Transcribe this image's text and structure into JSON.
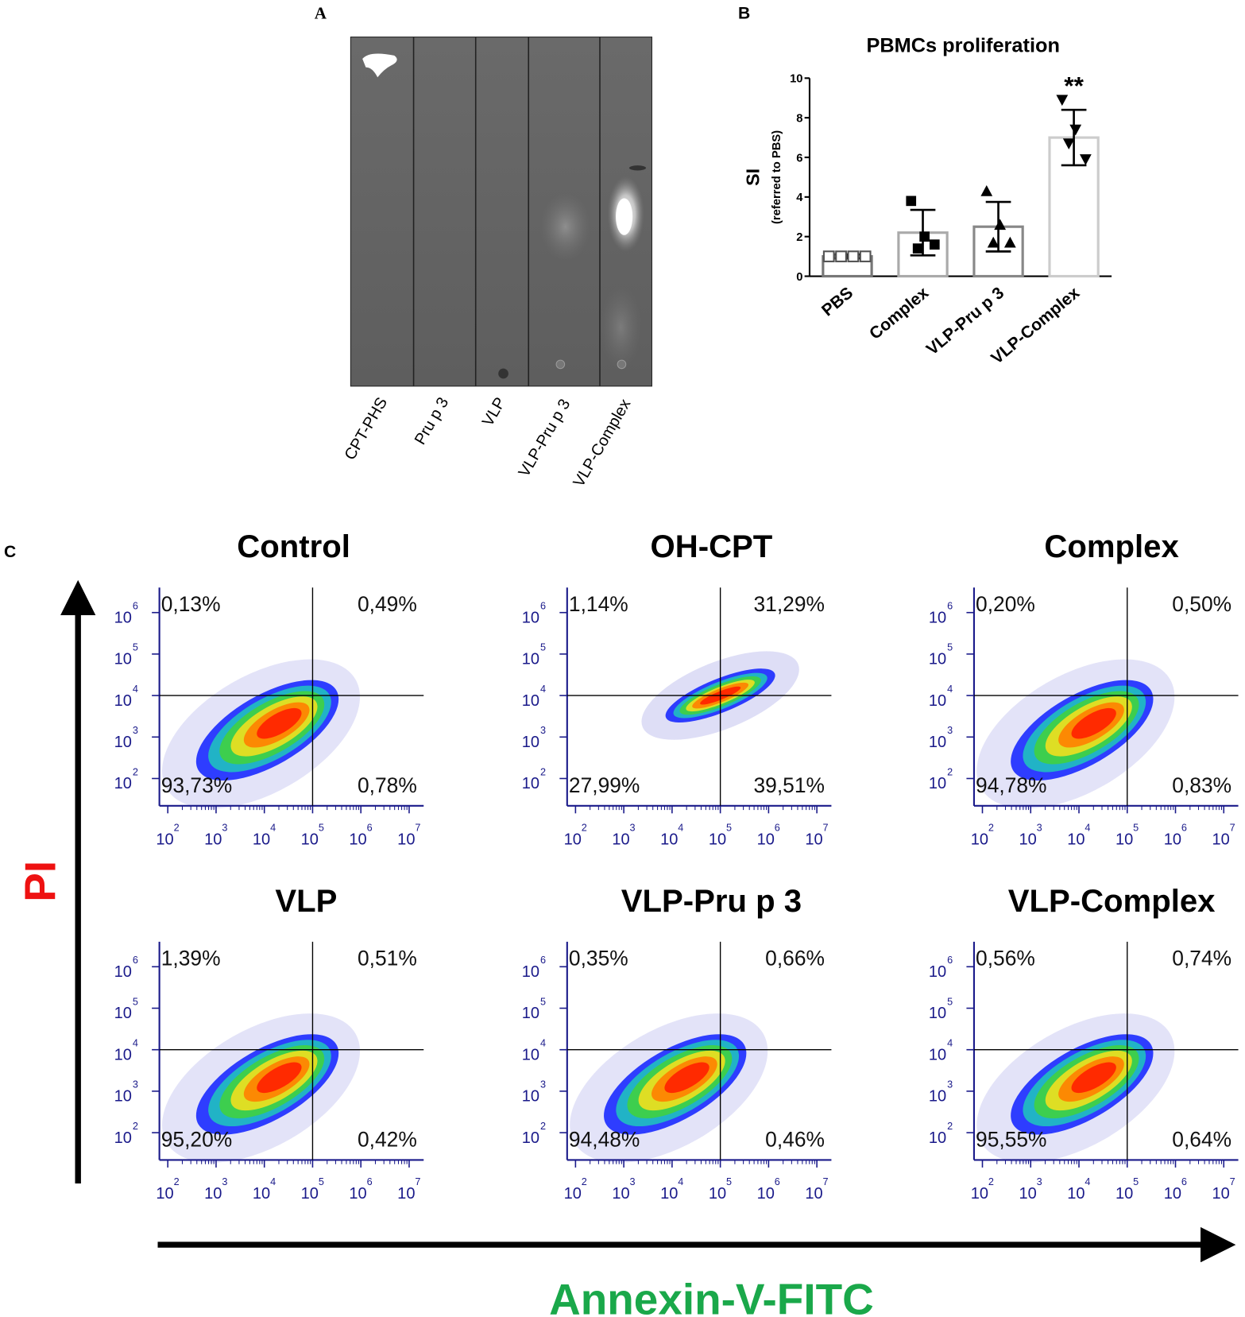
{
  "panel_a": {
    "letter": "A",
    "lanes": [
      "CPT-PHS",
      "Pru p 3",
      "VLP",
      "VLP-Pru p 3",
      "VLP-Complex"
    ]
  },
  "chart_data": [
    {
      "type": "bar",
      "letter": "B",
      "title": "PBMCs proliferation",
      "y_label": "SI",
      "y_sublabel": "(referred to PBS)",
      "categories": [
        "PBS",
        "Complex",
        "VLP-Pru p 3",
        "VLP-Complex"
      ],
      "values": [
        1,
        2.2,
        2.5,
        7.0
      ],
      "errors": [
        0.1,
        1.15,
        1.25,
        1.4
      ],
      "points": [
        [
          1,
          1,
          1,
          1
        ],
        [
          3.8,
          2.0,
          1.4,
          1.6
        ],
        [
          4.3,
          2.6,
          1.7,
          1.7
        ],
        [
          8.9,
          7.4,
          6.7,
          5.9
        ]
      ],
      "colors": [
        "#777777",
        "#aaaaaa",
        "#888888",
        "#cccccc"
      ],
      "markers": [
        "open-square",
        "square",
        "triangle",
        "triangle-down"
      ],
      "annotation": "**",
      "ylim": [
        0,
        10
      ],
      "yticks": [
        0,
        2,
        4,
        6,
        8,
        10
      ]
    },
    {
      "type": "flow",
      "title": "Control",
      "quadrants": [
        0.13,
        0.49,
        93.73,
        0.78
      ],
      "value_labels": [
        "0,13%",
        "0,49%",
        "93,73%",
        "0,78%"
      ],
      "log": true,
      "xlim": [
        67,
        20000000
      ],
      "ylim": [
        22,
        4000000
      ],
      "gate": [
        100000,
        10000
      ],
      "xticks": [
        {
          "value": 100,
          "label": "10",
          "sup": "2"
        },
        {
          "value": 1000,
          "label": "10",
          "sup": "3"
        },
        {
          "value": 10000,
          "label": "10",
          "sup": "4"
        },
        {
          "value": 100000,
          "label": "10",
          "sup": "5"
        },
        {
          "value": 1000000,
          "label": "10",
          "sup": "6"
        },
        {
          "value": 10000000,
          "label": "10",
          "sup": "7"
        }
      ],
      "yticks": [
        {
          "value": 100,
          "label": "10",
          "sup": "2"
        },
        {
          "value": 1000,
          "label": "10",
          "sup": "3"
        },
        {
          "value": 10000,
          "label": "10",
          "sup": "4"
        },
        {
          "value": 100000,
          "label": "10",
          "sup": "5"
        },
        {
          "value": 1000000,
          "label": "10",
          "sup": "6"
        }
      ]
    },
    {
      "type": "flow",
      "title": "OH-CPT",
      "quadrants": [
        1.14,
        31.29,
        27.99,
        39.51
      ],
      "value_labels": [
        "1,14%",
        "31,29%",
        "27,99%",
        "39,51%"
      ],
      "log": true,
      "xlim": [
        67,
        20000000
      ],
      "ylim": [
        22,
        4000000
      ],
      "gate": [
        100000,
        10000
      ],
      "xticks": [
        {
          "value": 100,
          "label": "10",
          "sup": "2"
        },
        {
          "value": 1000,
          "label": "10",
          "sup": "3"
        },
        {
          "value": 10000,
          "label": "10",
          "sup": "4"
        },
        {
          "value": 100000,
          "label": "10",
          "sup": "5"
        },
        {
          "value": 1000000,
          "label": "10",
          "sup": "6"
        },
        {
          "value": 10000000,
          "label": "10",
          "sup": "7"
        }
      ],
      "yticks": [
        {
          "value": 100,
          "label": "10",
          "sup": "2"
        },
        {
          "value": 1000,
          "label": "10",
          "sup": "3"
        },
        {
          "value": 10000,
          "label": "10",
          "sup": "4"
        },
        {
          "value": 100000,
          "label": "10",
          "sup": "5"
        },
        {
          "value": 1000000,
          "label": "10",
          "sup": "6"
        }
      ]
    },
    {
      "type": "flow",
      "title": "Complex",
      "quadrants": [
        0.2,
        0.5,
        94.78,
        0.83
      ],
      "value_labels": [
        "0,20%",
        "0,50%",
        "94,78%",
        "0,83%"
      ],
      "log": true,
      "xlim": [
        67,
        20000000
      ],
      "ylim": [
        22,
        4000000
      ],
      "gate": [
        100000,
        10000
      ],
      "xticks": [
        {
          "value": 100,
          "label": "10",
          "sup": "2"
        },
        {
          "value": 1000,
          "label": "10",
          "sup": "3"
        },
        {
          "value": 10000,
          "label": "10",
          "sup": "4"
        },
        {
          "value": 100000,
          "label": "10",
          "sup": "5"
        },
        {
          "value": 1000000,
          "label": "10",
          "sup": "6"
        },
        {
          "value": 10000000,
          "label": "10",
          "sup": "7"
        }
      ],
      "yticks": [
        {
          "value": 100,
          "label": "10",
          "sup": "2"
        },
        {
          "value": 1000,
          "label": "10",
          "sup": "3"
        },
        {
          "value": 10000,
          "label": "10",
          "sup": "4"
        },
        {
          "value": 100000,
          "label": "10",
          "sup": "5"
        },
        {
          "value": 1000000,
          "label": "10",
          "sup": "6"
        }
      ]
    },
    {
      "type": "flow",
      "title": "VLP",
      "quadrants": [
        1.39,
        0.51,
        95.2,
        0.42
      ],
      "value_labels": [
        "1,39%",
        "0,51%",
        "95,20%",
        "0,42%"
      ],
      "log": true,
      "xlim": [
        67,
        20000000
      ],
      "ylim": [
        22,
        4000000
      ],
      "gate": [
        100000,
        10000
      ],
      "xticks": [
        {
          "value": 100,
          "label": "10",
          "sup": "2"
        },
        {
          "value": 1000,
          "label": "10",
          "sup": "3"
        },
        {
          "value": 10000,
          "label": "10",
          "sup": "4"
        },
        {
          "value": 100000,
          "label": "10",
          "sup": "5"
        },
        {
          "value": 1000000,
          "label": "10",
          "sup": "6"
        },
        {
          "value": 10000000,
          "label": "10",
          "sup": "7"
        }
      ],
      "yticks": [
        {
          "value": 100,
          "label": "10",
          "sup": "2"
        },
        {
          "value": 1000,
          "label": "10",
          "sup": "3"
        },
        {
          "value": 10000,
          "label": "10",
          "sup": "4"
        },
        {
          "value": 100000,
          "label": "10",
          "sup": "5"
        },
        {
          "value": 1000000,
          "label": "10",
          "sup": "6"
        }
      ]
    },
    {
      "type": "flow",
      "title": "VLP-Pru p 3",
      "quadrants": [
        0.35,
        0.66,
        94.48,
        0.46
      ],
      "value_labels": [
        "0,35%",
        "0,66%",
        "94,48%",
        "0,46%"
      ],
      "log": true,
      "xlim": [
        67,
        20000000
      ],
      "ylim": [
        22,
        4000000
      ],
      "gate": [
        100000,
        10000
      ],
      "xticks": [
        {
          "value": 100,
          "label": "10",
          "sup": "2"
        },
        {
          "value": 1000,
          "label": "10",
          "sup": "3"
        },
        {
          "value": 10000,
          "label": "10",
          "sup": "4"
        },
        {
          "value": 100000,
          "label": "10",
          "sup": "5"
        },
        {
          "value": 1000000,
          "label": "10",
          "sup": "6"
        },
        {
          "value": 10000000,
          "label": "10",
          "sup": "7"
        }
      ],
      "yticks": [
        {
          "value": 100,
          "label": "10",
          "sup": "2"
        },
        {
          "value": 1000,
          "label": "10",
          "sup": "3"
        },
        {
          "value": 10000,
          "label": "10",
          "sup": "4"
        },
        {
          "value": 100000,
          "label": "10",
          "sup": "5"
        },
        {
          "value": 1000000,
          "label": "10",
          "sup": "6"
        }
      ]
    },
    {
      "type": "flow",
      "title": "VLP-Complex",
      "quadrants": [
        0.56,
        0.74,
        95.55,
        0.64
      ],
      "value_labels": [
        "0,56%",
        "0,74%",
        "95,55%",
        "0,64%"
      ],
      "log": true,
      "xlim": [
        67,
        20000000
      ],
      "ylim": [
        22,
        4000000
      ],
      "gate": [
        100000,
        10000
      ],
      "xticks": [
        {
          "value": 100,
          "label": "10",
          "sup": "2"
        },
        {
          "value": 1000,
          "label": "10",
          "sup": "3"
        },
        {
          "value": 10000,
          "label": "10",
          "sup": "4"
        },
        {
          "value": 100000,
          "label": "10",
          "sup": "5"
        },
        {
          "value": 1000000,
          "label": "10",
          "sup": "6"
        },
        {
          "value": 10000000,
          "label": "10",
          "sup": "7"
        }
      ],
      "yticks": [
        {
          "value": 100,
          "label": "10",
          "sup": "2"
        },
        {
          "value": 1000,
          "label": "10",
          "sup": "3"
        },
        {
          "value": 10000,
          "label": "10",
          "sup": "4"
        },
        {
          "value": 100000,
          "label": "10",
          "sup": "5"
        },
        {
          "value": 1000000,
          "label": "10",
          "sup": "6"
        }
      ]
    }
  ],
  "panel_c": {
    "letter": "C",
    "y_label": "PI",
    "x_label": "Annexin-V-FITC"
  }
}
